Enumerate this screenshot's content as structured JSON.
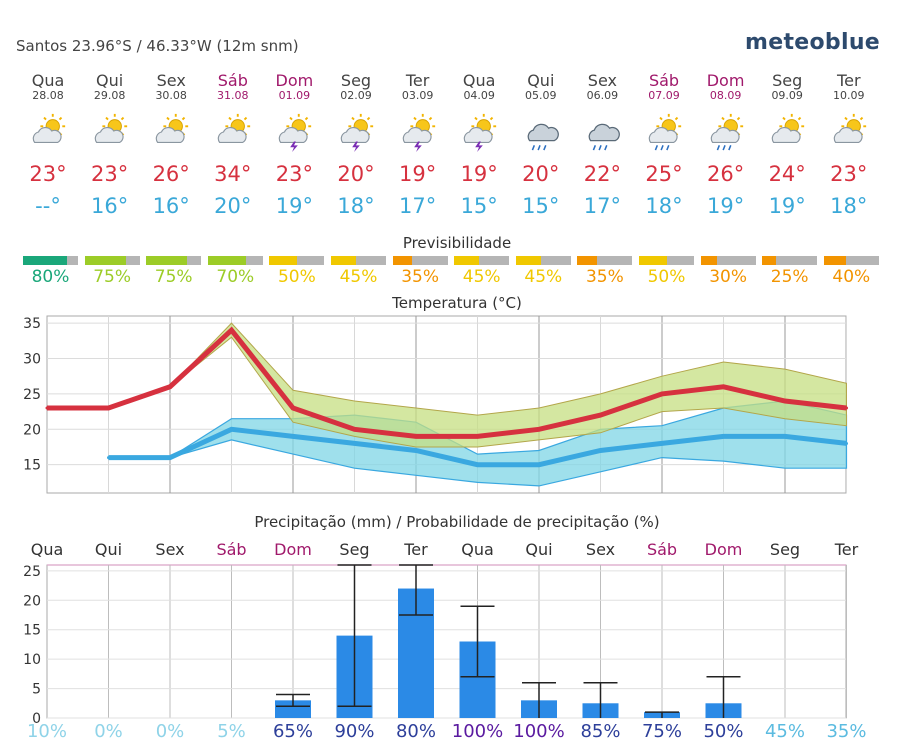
{
  "header": {
    "location": "Santos  23.96°S / 46.33°W (12m snm)",
    "logo": "meteoblue"
  },
  "days": [
    {
      "name": "Qua",
      "date": "28.08",
      "weekend": false,
      "icon": "sun-cloud-icon",
      "tmax": "23°",
      "tmin": "--°",
      "pred": "80%",
      "pred_color": "#1aa77a",
      "pred_frac": 0.8
    },
    {
      "name": "Qui",
      "date": "29.08",
      "weekend": false,
      "icon": "sun-cloud-icon",
      "tmax": "23°",
      "tmin": "16°",
      "pred": "75%",
      "pred_color": "#9ccc27",
      "pred_frac": 0.75
    },
    {
      "name": "Sex",
      "date": "30.08",
      "weekend": false,
      "icon": "sun-cloud-icon",
      "tmax": "26°",
      "tmin": "16°",
      "pred": "75%",
      "pred_color": "#9ccc27",
      "pred_frac": 0.75
    },
    {
      "name": "Sáb",
      "date": "31.08",
      "weekend": true,
      "icon": "sun-cloud-icon",
      "tmax": "34°",
      "tmin": "20°",
      "pred": "70%",
      "pred_color": "#9ccc27",
      "pred_frac": 0.7
    },
    {
      "name": "Dom",
      "date": "01.09",
      "weekend": true,
      "icon": "sun-cloud-thunder-icon",
      "tmax": "23°",
      "tmin": "19°",
      "pred": "50%",
      "pred_color": "#f0c800",
      "pred_frac": 0.5
    },
    {
      "name": "Seg",
      "date": "02.09",
      "weekend": false,
      "icon": "sun-cloud-thunder-icon",
      "tmax": "20°",
      "tmin": "18°",
      "pred": "45%",
      "pred_color": "#f0c800",
      "pred_frac": 0.45
    },
    {
      "name": "Ter",
      "date": "03.09",
      "weekend": false,
      "icon": "sun-cloud-thunder-icon",
      "tmax": "19°",
      "tmin": "17°",
      "pred": "35%",
      "pred_color": "#f29400",
      "pred_frac": 0.35
    },
    {
      "name": "Qua",
      "date": "04.09",
      "weekend": false,
      "icon": "sun-cloud-thunder-icon",
      "tmax": "19°",
      "tmin": "15°",
      "pred": "45%",
      "pred_color": "#f0c800",
      "pred_frac": 0.45
    },
    {
      "name": "Qui",
      "date": "05.09",
      "weekend": false,
      "icon": "cloud-rain-icon",
      "tmax": "20°",
      "tmin": "15°",
      "pred": "45%",
      "pred_color": "#f0c800",
      "pred_frac": 0.45
    },
    {
      "name": "Sex",
      "date": "06.09",
      "weekend": false,
      "icon": "cloud-rain-icon",
      "tmax": "22°",
      "tmin": "17°",
      "pred": "35%",
      "pred_color": "#f29400",
      "pred_frac": 0.35
    },
    {
      "name": "Sáb",
      "date": "07.09",
      "weekend": true,
      "icon": "sun-cloud-rain-icon",
      "tmax": "25°",
      "tmin": "18°",
      "pred": "50%",
      "pred_color": "#f0c800",
      "pred_frac": 0.5
    },
    {
      "name": "Dom",
      "date": "08.09",
      "weekend": true,
      "icon": "sun-cloud-rain-icon",
      "tmax": "26°",
      "tmin": "19°",
      "pred": "30%",
      "pred_color": "#f29400",
      "pred_frac": 0.3
    },
    {
      "name": "Seg",
      "date": "09.09",
      "weekend": false,
      "icon": "sun-cloud-icon",
      "tmax": "24°",
      "tmin": "19°",
      "pred": "25%",
      "pred_color": "#f29400",
      "pred_frac": 0.25
    },
    {
      "name": "Ter",
      "date": "10.09",
      "weekend": false,
      "icon": "sun-cloud-icon",
      "tmax": "23°",
      "tmin": "18°",
      "pred": "40%",
      "pred_color": "#f29400",
      "pred_frac": 0.4
    }
  ],
  "labels": {
    "predictability": "Previsibilidade",
    "temperature": "Temperatura (°C)",
    "precipitation": "Precipitação (mm) / Probabilidade de precipitação (%)"
  },
  "colors": {
    "tmax_line": "#d6313f",
    "tmin_line": "#3aa8e0",
    "tmax_band": "#c5df82",
    "tmin_band": "#7fd6e6",
    "precip_bar": "#2b8ae6",
    "weekend": "#a0196b"
  },
  "chart_data": [
    {
      "type": "line",
      "title": "Temperatura (°C)",
      "ylim": [
        11,
        36
      ],
      "yticks": [
        15,
        20,
        25,
        30,
        35
      ],
      "x": [
        "28.08",
        "29.08",
        "30.08",
        "31.08",
        "01.09",
        "02.09",
        "03.09",
        "04.09",
        "05.09",
        "06.09",
        "07.09",
        "08.09",
        "09.09",
        "10.09"
      ],
      "series": [
        {
          "role": "tmax",
          "values": [
            23,
            23,
            26,
            34,
            23,
            20,
            19,
            19,
            20,
            22,
            25,
            26,
            24,
            23
          ],
          "band_high": [
            23,
            23,
            26,
            35,
            25.5,
            24,
            23,
            22,
            23,
            25,
            27.5,
            29.5,
            28.5,
            26.5
          ],
          "band_low": [
            23,
            23,
            26,
            33,
            21,
            19,
            17.5,
            17.5,
            18.5,
            19.5,
            22.5,
            23,
            21.5,
            20.5
          ]
        },
        {
          "role": "tmin",
          "values": [
            null,
            16,
            16,
            20,
            19,
            18,
            17,
            15,
            15,
            17,
            18,
            19,
            19,
            18
          ],
          "band_high": [
            null,
            16,
            16,
            21.5,
            21.5,
            22,
            21,
            16.5,
            17,
            20,
            20.5,
            23,
            24,
            22
          ],
          "band_low": [
            null,
            16,
            16,
            18.5,
            16.5,
            14.5,
            13.5,
            12.5,
            12,
            14,
            16,
            15.5,
            14.5,
            14.5
          ]
        }
      ],
      "grid": true
    },
    {
      "type": "bar",
      "title": "Precipitação (mm) / Probabilidade de precipitação (%)",
      "ylim": [
        0,
        26
      ],
      "yticks": [
        0,
        5,
        10,
        15,
        20,
        25
      ],
      "categories": [
        "Qua",
        "Qui",
        "Sex",
        "Sáb",
        "Dom",
        "Seg",
        "Ter",
        "Qua",
        "Qui",
        "Sex",
        "Sáb",
        "Dom",
        "Seg",
        "Ter"
      ],
      "values": [
        0,
        0,
        0,
        0,
        3,
        14,
        22,
        13,
        3,
        2.5,
        1,
        2.5,
        0,
        0
      ],
      "error_low": [
        0,
        0,
        0,
        0,
        2,
        2,
        17.5,
        7,
        0,
        0,
        0,
        0,
        0,
        0
      ],
      "error_high": [
        0,
        0,
        0,
        0,
        4,
        26,
        26,
        19,
        6,
        6,
        1,
        7,
        0,
        0
      ],
      "probability": [
        "10%",
        "0%",
        "0%",
        "5%",
        "65%",
        "90%",
        "80%",
        "100%",
        "100%",
        "85%",
        "75%",
        "50%",
        "45%",
        "35%"
      ],
      "probability_colors": [
        "#8fd3e8",
        "#8fd3e8",
        "#8fd3e8",
        "#8fd3e8",
        "#2d3f9a",
        "#2d3f9a",
        "#2d3f9a",
        "#5a1aa0",
        "#5a1aa0",
        "#2d3f9a",
        "#2d3f9a",
        "#2d3f9a",
        "#5bbbe0",
        "#5bbbe0"
      ],
      "grid": true
    }
  ]
}
